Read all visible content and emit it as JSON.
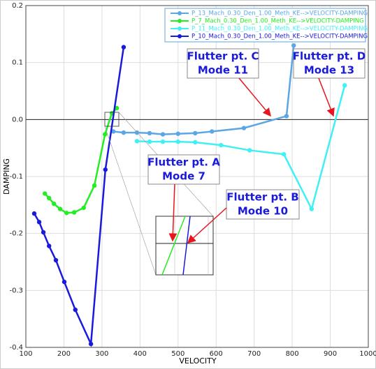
{
  "chart_data": {
    "type": "line",
    "x_label": "VELOCITY",
    "y_label": "DAMPING",
    "xlim": [
      100,
      1000
    ],
    "ylim": [
      -0.4,
      0.2
    ],
    "xticks": [
      100,
      200,
      300,
      400,
      500,
      600,
      700,
      800,
      900,
      1000
    ],
    "yticks": [
      -0.4,
      -0.3,
      -0.2,
      -0.1,
      {
        "value": 0,
        "label": "0.0"
      },
      0.1,
      0.2
    ],
    "grid": true,
    "legend": "upper right",
    "series": [
      {
        "name": "P_13_Mach_0.30_Den_1.00_Meth_KE-->VELOCITY-DAMPING",
        "color": "#5ba6e4",
        "x": [
          330,
          357,
          392,
          425,
          460,
          500,
          545,
          589,
          673,
          785,
          804
        ],
        "values": [
          -0.021,
          -0.023,
          -0.023,
          -0.024,
          -0.026,
          -0.025,
          -0.024,
          -0.021,
          -0.015,
          0.006,
          0.13
        ]
      },
      {
        "name": "P_7_Mach_0.30_Den_1.00_Meth_KE-->VELOCITY-DAMPING",
        "color": "#22ee22",
        "x": [
          150,
          161,
          174,
          190,
          207,
          227,
          252,
          280,
          308,
          326,
          339
        ],
        "values": [
          -0.13,
          -0.138,
          -0.148,
          -0.157,
          -0.164,
          -0.163,
          -0.155,
          -0.116,
          -0.026,
          0.011,
          0.02
        ]
      },
      {
        "name": "P_11_Mach_0.30_Den_1.00_Meth_KE-->VELOCITY-DAMPING",
        "color": "#3ff0f5",
        "x": [
          392,
          425,
          460,
          500,
          545,
          613,
          688,
          778,
          851,
          938
        ],
        "values": [
          -0.038,
          -0.039,
          -0.039,
          -0.039,
          -0.04,
          -0.045,
          -0.054,
          -0.061,
          -0.157,
          0.06
        ]
      },
      {
        "name": "P_10_Mach_0.30_Den_1.00_Meth_KE-->VELOCITY-DAMPING",
        "color": "#1a1adc",
        "x": [
          122,
          135,
          146,
          161,
          179,
          201,
          230,
          271,
          309,
          357
        ],
        "values": [
          -0.165,
          -0.18,
          -0.198,
          -0.222,
          -0.247,
          -0.285,
          -0.334,
          -0.394,
          -0.088,
          0.127
        ]
      }
    ],
    "annotations": [
      {
        "line1": "Flutter pt. C",
        "line2": "Mode 11"
      },
      {
        "line1": "Flutter pt. D",
        "line2": "Mode 13"
      },
      {
        "line1": "Flutter pt. A",
        "line2": "Mode 7"
      },
      {
        "line1": "Flutter pt. B",
        "line2": "Mode 10"
      }
    ]
  }
}
